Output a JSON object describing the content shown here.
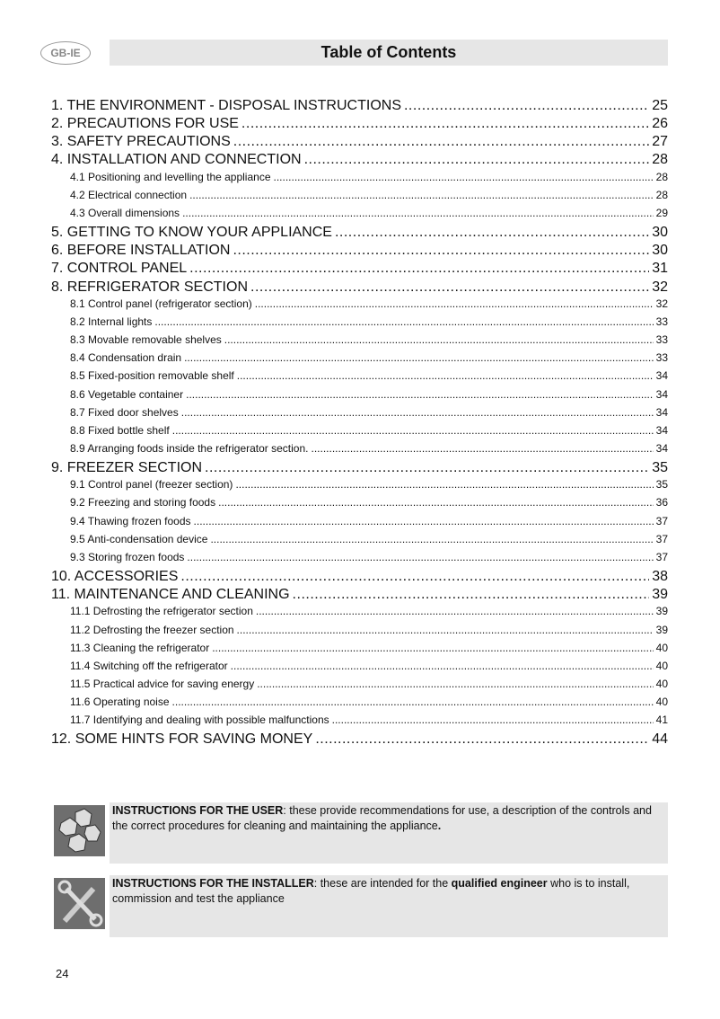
{
  "header": {
    "badge": "GB-IE",
    "title": "Table of Contents"
  },
  "toc": [
    {
      "level": 1,
      "label": "1. THE ENVIRONMENT - DISPOSAL INSTRUCTIONS",
      "page": "25"
    },
    {
      "level": 1,
      "label": "2. PRECAUTIONS FOR USE",
      "page": "26"
    },
    {
      "level": 1,
      "label": "3. SAFETY PRECAUTIONS",
      "page": "27"
    },
    {
      "level": 1,
      "label": "4. INSTALLATION AND CONNECTION",
      "page": "28"
    },
    {
      "level": 2,
      "label": "4.1 Positioning and levelling the appliance",
      "page": "28"
    },
    {
      "level": 2,
      "label": "4.2 Electrical connection",
      "page": "28"
    },
    {
      "level": 2,
      "label": "4.3 Overall dimensions",
      "page": "29"
    },
    {
      "level": 1,
      "label": "5. GETTING TO KNOW YOUR APPLIANCE",
      "page": "30"
    },
    {
      "level": 1,
      "label": "6. BEFORE INSTALLATION",
      "page": "30"
    },
    {
      "level": 1,
      "label": "7. CONTROL PANEL",
      "page": "31"
    },
    {
      "level": 1,
      "label": "8. REFRIGERATOR SECTION",
      "page": "32"
    },
    {
      "level": 2,
      "label": "8.1 Control panel (refrigerator section)",
      "page": "32"
    },
    {
      "level": 2,
      "label": "8.2 Internal lights",
      "page": "33"
    },
    {
      "level": 2,
      "label": "8.3 Movable removable shelves",
      "page": "33"
    },
    {
      "level": 2,
      "label": "8.4 Condensation drain",
      "page": "33"
    },
    {
      "level": 2,
      "label": "8.5 Fixed-position removable shelf",
      "page": "34"
    },
    {
      "level": 2,
      "label": "8.6 Vegetable container",
      "page": "34"
    },
    {
      "level": 2,
      "label": "8.7 Fixed door shelves",
      "page": "34"
    },
    {
      "level": 2,
      "label": "8.8 Fixed bottle shelf",
      "page": "34"
    },
    {
      "level": 2,
      "label": "8.9 Arranging foods inside the refrigerator section.",
      "page": "34"
    },
    {
      "level": 1,
      "label": "9. FREEZER SECTION",
      "page": "35"
    },
    {
      "level": 2,
      "label": "9.1 Control panel (freezer section)",
      "page": "35"
    },
    {
      "level": 2,
      "label": "9.2 Freezing and storing foods",
      "page": "36"
    },
    {
      "level": 2,
      "label": "9.4 Thawing frozen foods",
      "page": "37"
    },
    {
      "level": 2,
      "label": "9.5 Anti-condensation device",
      "page": "37"
    },
    {
      "level": 2,
      "label": "9.3 Storing frozen foods",
      "page": "37"
    },
    {
      "level": 1,
      "label": "10. ACCESSORIES",
      "page": "38"
    },
    {
      "level": 1,
      "label": "11. MAINTENANCE AND CLEANING",
      "page": "39"
    },
    {
      "level": 2,
      "label": "11.1 Defrosting the refrigerator section",
      "page": "39"
    },
    {
      "level": 2,
      "label": "11.2 Defrosting the freezer section",
      "page": "39"
    },
    {
      "level": 2,
      "label": "11.3 Cleaning the refrigerator",
      "page": "40"
    },
    {
      "level": 2,
      "label": "11.4 Switching off the refrigerator",
      "page": "40"
    },
    {
      "level": 2,
      "label": "11.5 Practical advice for saving energy",
      "page": "40"
    },
    {
      "level": 2,
      "label": "11.6 Operating noise",
      "page": "40"
    },
    {
      "level": 2,
      "label": "11.7 Identifying and dealing with possible malfunctions",
      "page": "41"
    },
    {
      "level": 1,
      "label": "12. SOME HINTS FOR SAVING MONEY",
      "page": "44"
    }
  ],
  "notes": {
    "user": {
      "icon": "ice-cubes-icon",
      "bold": "INSTRUCTIONS FOR THE USER",
      "text": ": these provide recommendations for use, a description of the controls and the correct procedures for cleaning and maintaining the appliance",
      "end": "."
    },
    "installer": {
      "icon": "wrench-screwdriver-icon",
      "bold": "INSTRUCTIONS FOR THE INSTALLER",
      "text1": ": these are intended for the ",
      "bold2": "qualified engineer",
      "text2": " who is to install, commission and test the appliance"
    }
  },
  "page_number": "24"
}
